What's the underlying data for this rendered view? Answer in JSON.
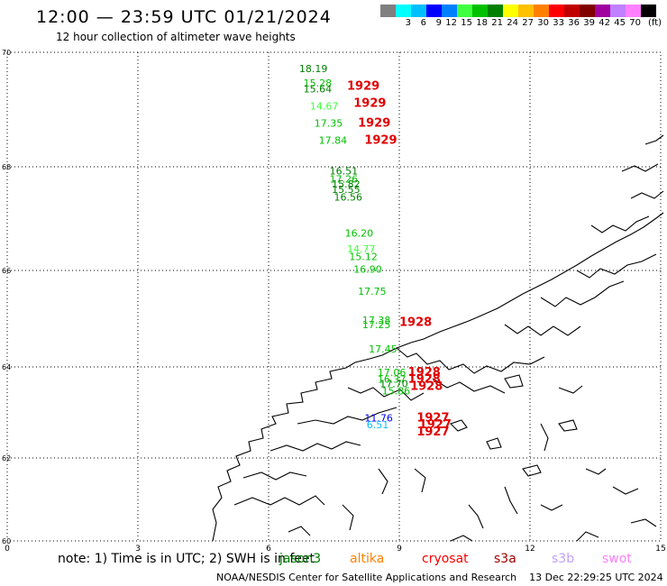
{
  "header": {
    "title": "12:00 — 23:59 UTC 01/21/2024",
    "subtitle": "12 hour collection of altimeter wave heights"
  },
  "legend": {
    "unit": "(ft)",
    "colors": [
      "#808080",
      "#00ffff",
      "#00bfff",
      "#0000ff",
      "#0080ff",
      "#40ff40",
      "#00c000",
      "#008000",
      "#ffff00",
      "#ffc000",
      "#ff8000",
      "#ff0000",
      "#c00000",
      "#800000",
      "#a000a0",
      "#c080ff",
      "#ff80ff",
      "#000000"
    ],
    "labels": [
      "3",
      "6",
      "9",
      "12",
      "15",
      "18",
      "21",
      "24",
      "27",
      "30",
      "33",
      "36",
      "39",
      "42",
      "45",
      "70"
    ]
  },
  "map": {
    "lon_ticks": [
      "0",
      "3",
      "6",
      "9",
      "12",
      "15"
    ],
    "lat_ticks": [
      "70",
      "68",
      "66",
      "64",
      "62",
      "60"
    ],
    "wave_heights": [
      {
        "value": "18.19",
        "color": "#008000",
        "lon": 6.7,
        "lat": 69.65
      },
      {
        "value": "15.28",
        "color": "#00c000",
        "lon": 6.8,
        "lat": 69.4
      },
      {
        "value": "15.64",
        "color": "#008000",
        "lon": 6.8,
        "lat": 69.3
      },
      {
        "value": "14.67",
        "color": "#40ff40",
        "lon": 6.95,
        "lat": 69.0
      },
      {
        "value": "17.35",
        "color": "#00c000",
        "lon": 7.05,
        "lat": 68.7
      },
      {
        "value": "17.84",
        "color": "#00c000",
        "lon": 7.15,
        "lat": 68.4
      },
      {
        "value": "16.51",
        "color": "#008000",
        "lon": 7.4,
        "lat": 67.85
      },
      {
        "value": "17.26",
        "color": "#00c000",
        "lon": 7.4,
        "lat": 67.7
      },
      {
        "value": "15.82",
        "color": "#008000",
        "lon": 7.45,
        "lat": 67.6
      },
      {
        "value": "15.55",
        "color": "#008000",
        "lon": 7.45,
        "lat": 67.5
      },
      {
        "value": "16.56",
        "color": "#008000",
        "lon": 7.5,
        "lat": 67.35
      },
      {
        "value": "16.20",
        "color": "#00c000",
        "lon": 7.75,
        "lat": 66.65
      },
      {
        "value": "14.77",
        "color": "#40ff40",
        "lon": 7.8,
        "lat": 66.35
      },
      {
        "value": "15.12",
        "color": "#00c000",
        "lon": 7.85,
        "lat": 66.2
      },
      {
        "value": "16.90",
        "color": "#00c000",
        "lon": 7.95,
        "lat": 65.95
      },
      {
        "value": "17.75",
        "color": "#00c000",
        "lon": 8.05,
        "lat": 65.5
      },
      {
        "value": "17.38",
        "color": "#00c000",
        "lon": 8.15,
        "lat": 64.9
      },
      {
        "value": "17.25",
        "color": "#00c000",
        "lon": 8.15,
        "lat": 64.8
      },
      {
        "value": "17.45",
        "color": "#00c000",
        "lon": 8.3,
        "lat": 64.3
      },
      {
        "value": "17.06",
        "color": "#00c000",
        "lon": 8.5,
        "lat": 63.8
      },
      {
        "value": "16.37",
        "color": "#00c000",
        "lon": 8.5,
        "lat": 63.65
      },
      {
        "value": "17.70",
        "color": "#008000",
        "lon": 8.55,
        "lat": 63.55
      },
      {
        "value": "15.86",
        "color": "#00c000",
        "lon": 8.6,
        "lat": 63.4
      },
      {
        "value": "11.76",
        "color": "#0000ff",
        "lon": 8.2,
        "lat": 62.8
      },
      {
        "value": "6.51",
        "color": "#00bfff",
        "lon": 8.25,
        "lat": 62.65
      }
    ],
    "pass_labels": [
      {
        "text": "1929",
        "lon": 7.8,
        "lat": 69.35
      },
      {
        "text": "1929",
        "lon": 7.95,
        "lat": 69.05
      },
      {
        "text": "1929",
        "lon": 8.05,
        "lat": 68.7
      },
      {
        "text": "1929",
        "lon": 8.2,
        "lat": 68.4
      },
      {
        "text": "1928",
        "lon": 9.0,
        "lat": 64.85
      },
      {
        "text": "1928",
        "lon": 9.2,
        "lat": 63.8
      },
      {
        "text": "1928",
        "lon": 9.2,
        "lat": 63.65
      },
      {
        "text": "1928",
        "lon": 9.25,
        "lat": 63.5
      },
      {
        "text": "1927",
        "lon": 9.4,
        "lat": 62.8
      },
      {
        "text": "1927",
        "lon": 9.45,
        "lat": 62.65
      },
      {
        "text": "1927",
        "lon": 9.4,
        "lat": 62.5
      }
    ]
  },
  "footer": {
    "note": "note:  1) Time is in UTC; 2) SWH is in feet",
    "satellites": [
      {
        "name": "jason3",
        "color": "#008000"
      },
      {
        "name": "altika",
        "color": "#ff8000"
      },
      {
        "name": "cryosat",
        "color": "#ff0000"
      },
      {
        "name": "s3a",
        "color": "#a00000"
      },
      {
        "name": "s3b",
        "color": "#c0a0ff"
      },
      {
        "name": "swot",
        "color": "#ff80ff"
      }
    ],
    "credit": "NOAA/NESDIS Center for Satellite Applications and Research",
    "timestamp": "13 Dec 22:29:25 UTC 2024"
  }
}
